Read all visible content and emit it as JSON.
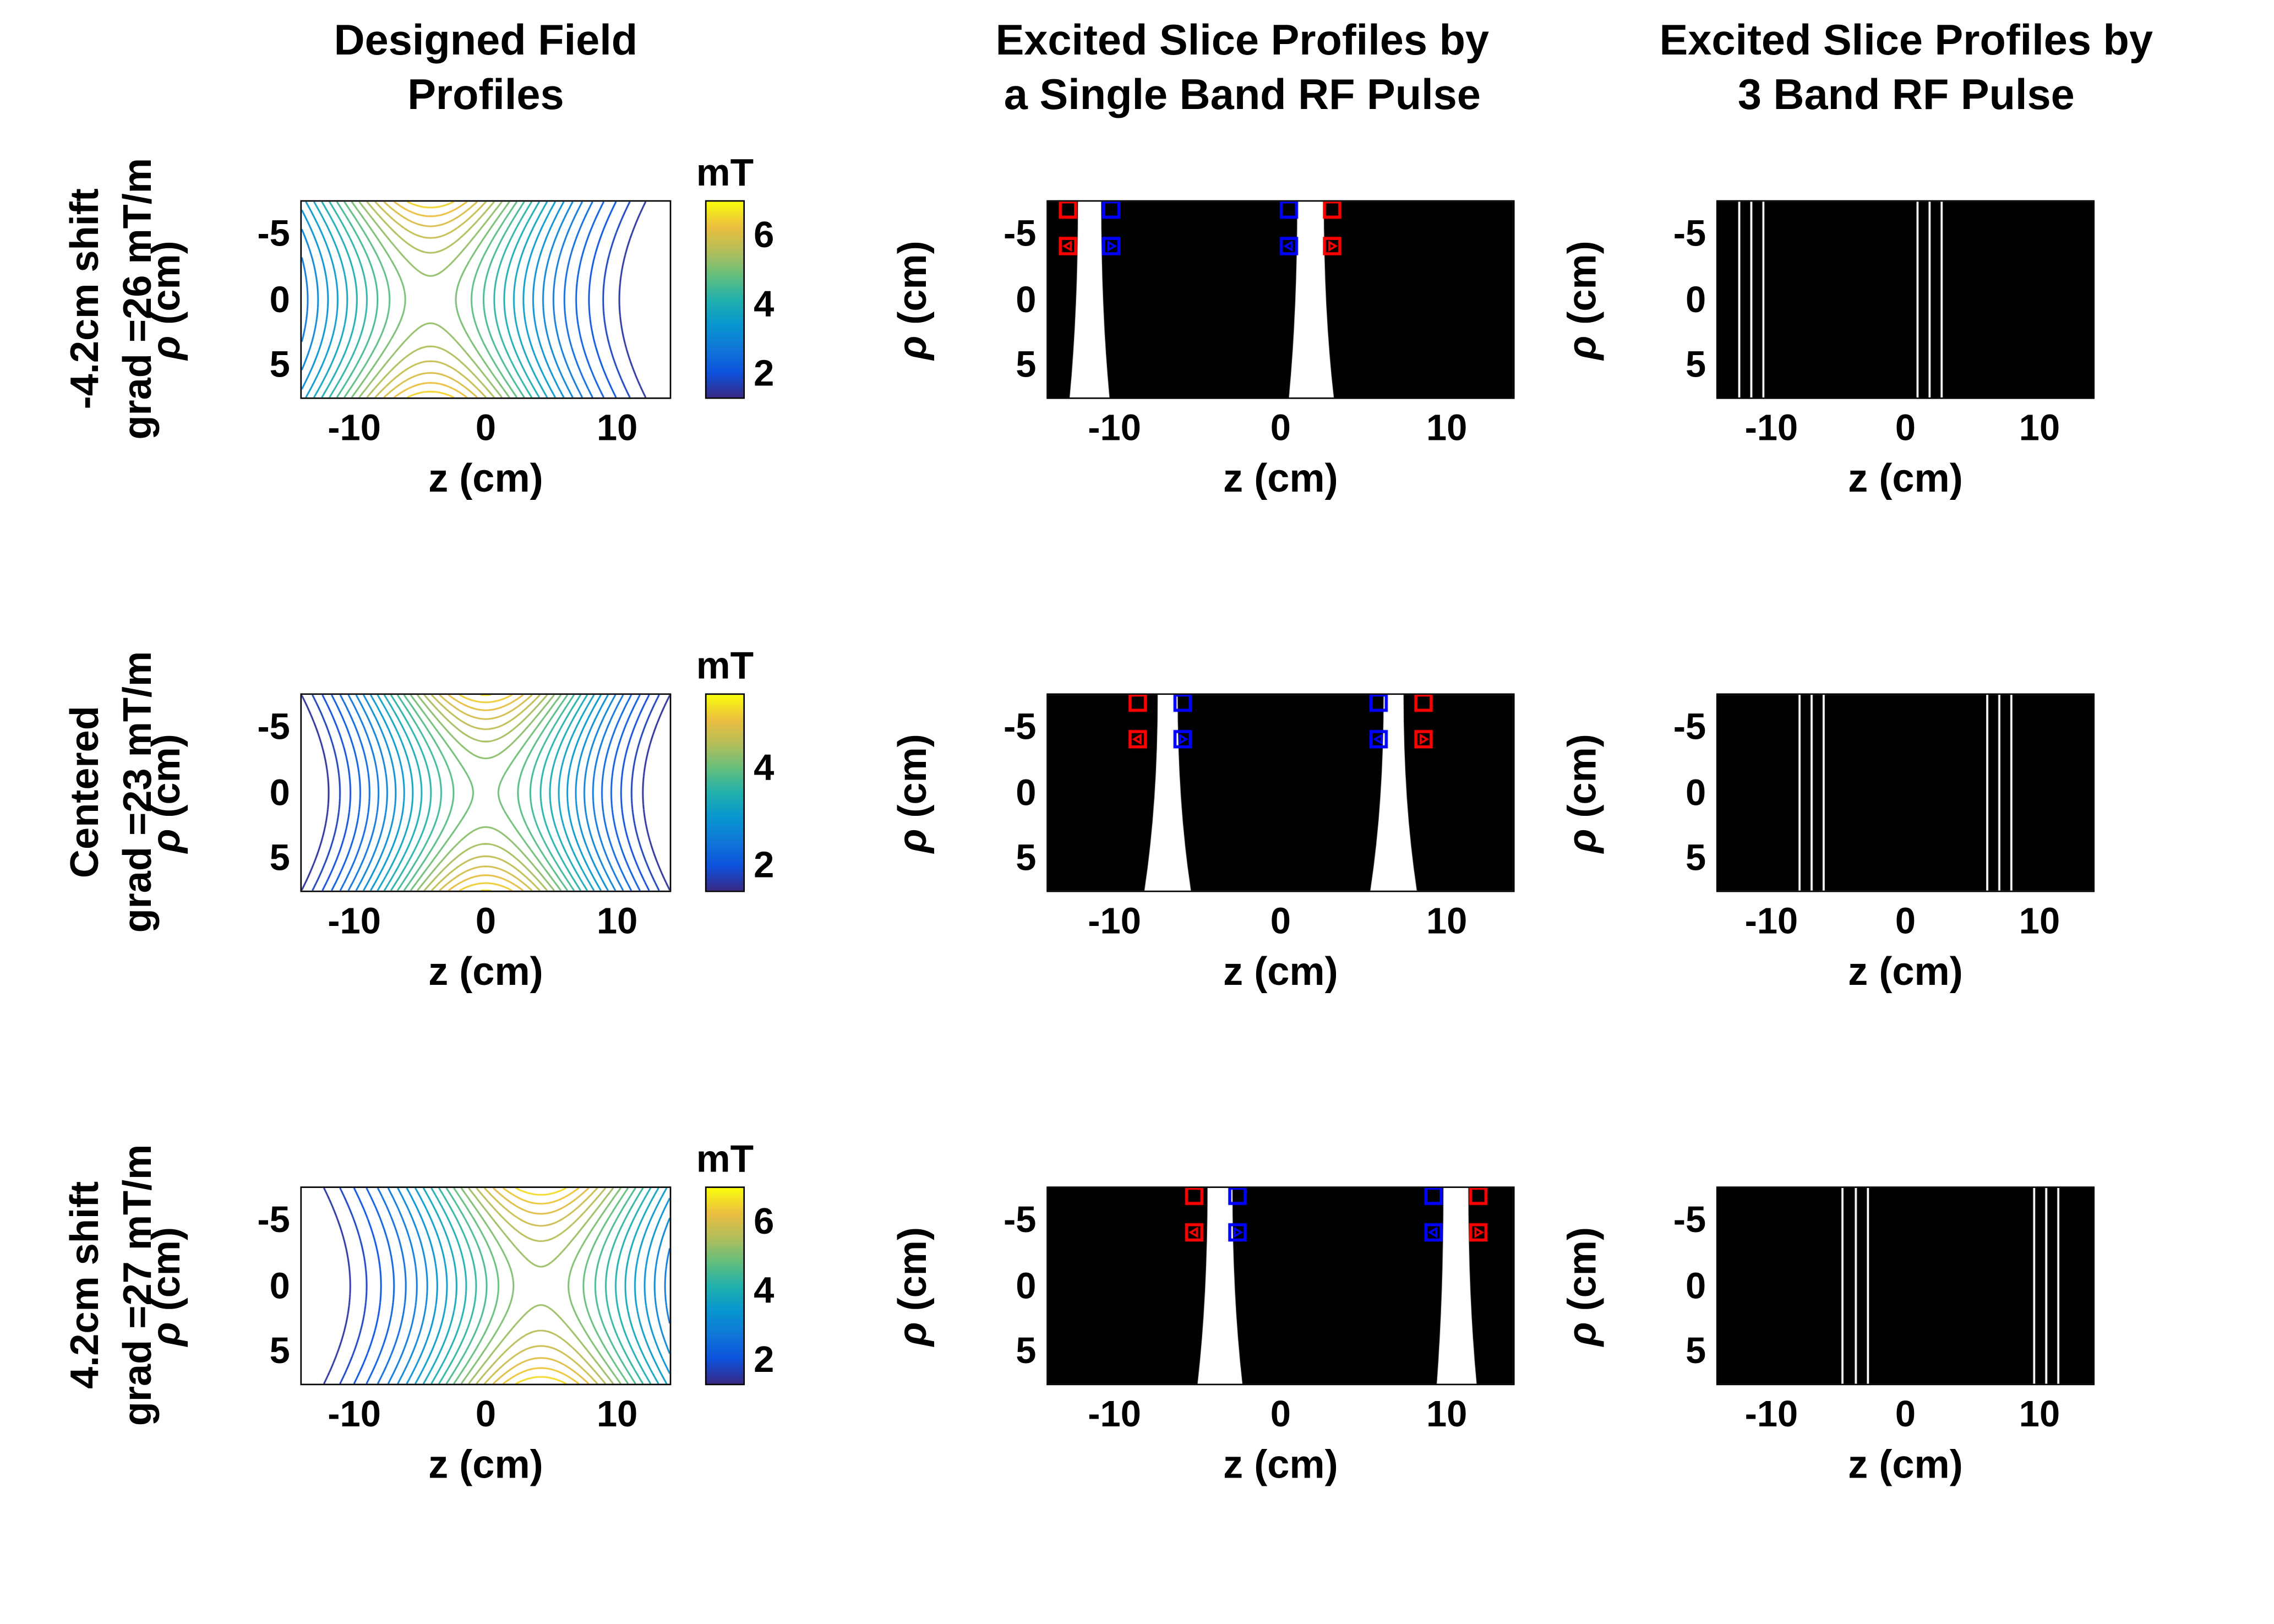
{
  "figure": {
    "col_titles": [
      {
        "line1": "Designed Field Profiles",
        "line2": ""
      },
      {
        "line1": "Excited Slice Profiles by",
        "line2": "a Single Band RF Pulse"
      },
      {
        "line1": "Excited Slice Profiles by",
        "line2": "3 Band RF Pulse"
      }
    ],
    "rows": [
      {
        "label1": "-4.2cm shift",
        "label2": "grad =26 mT/m"
      },
      {
        "label1": "Centered",
        "label2": "grad =23 mT/m"
      },
      {
        "label1": "4.2cm shift",
        "label2": "grad =27 mT/m"
      }
    ]
  },
  "chart_data": {
    "axes": {
      "xlabel": "z (cm)",
      "ylabel": "ρ (cm)",
      "xticks": [
        -10,
        0,
        10
      ],
      "yticks": [
        -5,
        0,
        5
      ],
      "xlim": [
        -14,
        14
      ],
      "ylim": [
        -7.5,
        7.5
      ]
    },
    "marker_colors": {
      "red": "#ff0000",
      "blue": "#0000ff"
    },
    "colors": {
      "background": "#ffffff",
      "image_bg": "#000000",
      "band": "#ffffff"
    },
    "rows": [
      {
        "contour": {
          "type": "contour",
          "saddle_z_cm": -4.2,
          "gradient_mT_per_m": 26,
          "colorbar": {
            "title": "mT",
            "ticks": [
              2,
              4,
              6
            ],
            "vmin": 1.3,
            "vmax": 7.0,
            "colormap": "parula"
          },
          "model": {
            "amplitude_mT": 5.2,
            "z_scale_cm": 7.5,
            "rho_scale_cm": 10,
            "level_min": 1.5,
            "level_max": 6.8,
            "n_levels": 22
          }
        },
        "single_band": {
          "type": "binary-image",
          "bands": [
            {
              "top": [
                -12.2,
                -10.8
              ],
              "bottom": [
                -12.7,
                -10.3
              ]
            },
            {
              "top": [
                1.0,
                2.6
              ],
              "bottom": [
                0.5,
                3.2
              ]
            }
          ],
          "markers": [
            {
              "z": -12.8,
              "rho": -6.9,
              "color": "red",
              "glyph": ""
            },
            {
              "z": -10.2,
              "rho": -6.9,
              "color": "blue",
              "glyph": ""
            },
            {
              "z": 0.5,
              "rho": -6.9,
              "color": "blue",
              "glyph": ""
            },
            {
              "z": 3.1,
              "rho": -6.9,
              "color": "red",
              "glyph": ""
            },
            {
              "z": -12.8,
              "rho": -4.1,
              "color": "red",
              "glyph": "left-triangle"
            },
            {
              "z": -10.2,
              "rho": -4.1,
              "color": "blue",
              "glyph": "right-triangle"
            },
            {
              "z": 0.5,
              "rho": -4.1,
              "color": "blue",
              "glyph": "left-triangle"
            },
            {
              "z": 3.1,
              "rho": -4.1,
              "color": "red",
              "glyph": "right-triangle"
            }
          ]
        },
        "three_band": {
          "type": "binary-image",
          "lines": [
            -12.4,
            -11.5,
            -10.6,
            0.9,
            1.8,
            2.7
          ]
        }
      },
      {
        "contour": {
          "type": "contour",
          "saddle_z_cm": 0,
          "gradient_mT_per_m": 23,
          "colorbar": {
            "title": "mT",
            "ticks": [
              2,
              4
            ],
            "vmin": 1.5,
            "vmax": 5.5,
            "colormap": "parula"
          },
          "model": {
            "amplitude_mT": 4.1,
            "z_scale_cm": 7.5,
            "rho_scale_cm": 10,
            "level_min": 1.6,
            "level_max": 5.3,
            "n_levels": 22
          }
        },
        "single_band": {
          "type": "binary-image",
          "bands": [
            {
              "top": [
                -7.4,
                -6.2
              ],
              "bottom": [
                -8.2,
                -5.4
              ]
            },
            {
              "top": [
                6.2,
                7.4
              ],
              "bottom": [
                5.4,
                8.2
              ]
            }
          ],
          "markers": [
            {
              "z": -8.6,
              "rho": -6.9,
              "color": "red",
              "glyph": ""
            },
            {
              "z": -5.9,
              "rho": -6.9,
              "color": "blue",
              "glyph": ""
            },
            {
              "z": 5.9,
              "rho": -6.9,
              "color": "blue",
              "glyph": ""
            },
            {
              "z": 8.6,
              "rho": -6.9,
              "color": "red",
              "glyph": ""
            },
            {
              "z": -8.6,
              "rho": -4.1,
              "color": "red",
              "glyph": "left-triangle"
            },
            {
              "z": -5.9,
              "rho": -4.1,
              "color": "blue",
              "glyph": "right-triangle"
            },
            {
              "z": 5.9,
              "rho": -4.1,
              "color": "blue",
              "glyph": "left-triangle"
            },
            {
              "z": 8.6,
              "rho": -4.1,
              "color": "red",
              "glyph": "right-triangle"
            }
          ]
        },
        "three_band": {
          "type": "binary-image",
          "lines": [
            -7.9,
            -7.0,
            -6.1,
            6.1,
            7.0,
            7.9
          ]
        }
      },
      {
        "contour": {
          "type": "contour",
          "saddle_z_cm": 4.2,
          "gradient_mT_per_m": 27,
          "colorbar": {
            "title": "mT",
            "ticks": [
              2,
              4,
              6
            ],
            "vmin": 1.3,
            "vmax": 7.0,
            "colormap": "parula"
          },
          "model": {
            "amplitude_mT": 5.3,
            "z_scale_cm": 7.5,
            "rho_scale_cm": 10,
            "level_min": 1.5,
            "level_max": 6.9,
            "n_levels": 22
          }
        },
        "single_band": {
          "type": "binary-image",
          "bands": [
            {
              "top": [
                -4.4,
                -2.9
              ],
              "bottom": [
                -5.0,
                -2.3
              ]
            },
            {
              "top": [
                9.8,
                11.3
              ],
              "bottom": [
                9.4,
                11.8
              ]
            }
          ],
          "markers": [
            {
              "z": -5.2,
              "rho": -6.9,
              "color": "red",
              "glyph": ""
            },
            {
              "z": -2.6,
              "rho": -6.9,
              "color": "blue",
              "glyph": ""
            },
            {
              "z": 9.2,
              "rho": -6.9,
              "color": "blue",
              "glyph": ""
            },
            {
              "z": 11.9,
              "rho": -6.9,
              "color": "red",
              "glyph": ""
            },
            {
              "z": -5.2,
              "rho": -4.1,
              "color": "red",
              "glyph": "left-triangle"
            },
            {
              "z": -2.6,
              "rho": -4.1,
              "color": "blue",
              "glyph": "right-triangle"
            },
            {
              "z": 9.2,
              "rho": -4.1,
              "color": "blue",
              "glyph": "left-triangle"
            },
            {
              "z": 11.9,
              "rho": -4.1,
              "color": "red",
              "glyph": "right-triangle"
            }
          ]
        },
        "three_band": {
          "type": "binary-image",
          "lines": [
            -4.7,
            -3.7,
            -2.8,
            9.6,
            10.5,
            11.4
          ]
        }
      }
    ]
  }
}
